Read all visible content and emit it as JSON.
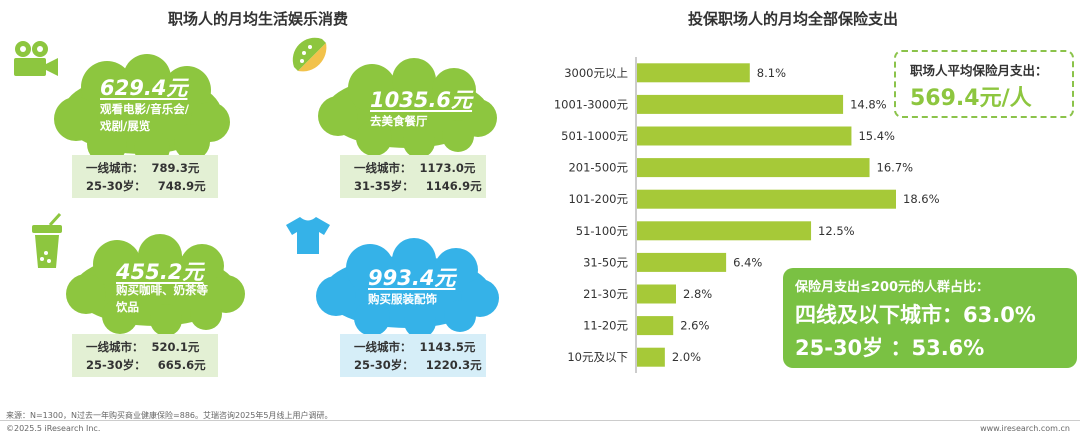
{
  "left_title": "职场人的月均生活娱乐消费",
  "right_title": "投保职场人的月均全部保险支出",
  "colors": {
    "green": "#8dc63f",
    "blue": "#35b2e8",
    "lightgreen": "#e3f0d4",
    "lightblue": "#d6eef8",
    "bar": "#a6c938"
  },
  "consumption": [
    {
      "amount": "629.4元",
      "desc": "观看电影/音乐会/\n戏剧/展览",
      "stat1": "一线城市：  789.3元",
      "stat2": "25-30岁：   748.9元",
      "icon": "movie-camera-icon"
    },
    {
      "amount": "1035.6元",
      "desc": "去美食餐厅",
      "stat1": "一线城市：  1173.0元",
      "stat2": "31-35岁：   1146.9元",
      "icon": "taco-icon"
    },
    {
      "amount": "455.2元",
      "desc": "购买咖啡、奶茶等\n饮品",
      "stat1": "一线城市：  520.1元",
      "stat2": "25-30岁：   665.6元",
      "icon": "drink-cup-icon"
    },
    {
      "amount": "993.4元",
      "desc": "购买服装配饰",
      "stat1": "一线城市：  1143.5元",
      "stat2": "25-30岁：   1220.3元",
      "icon": "tshirt-icon"
    }
  ],
  "chart_data": {
    "type": "bar",
    "orientation": "horizontal",
    "title": "投保职场人的月均全部保险支出",
    "categories": [
      "3000元以上",
      "1001-3000元",
      "501-1000元",
      "201-500元",
      "101-200元",
      "51-100元",
      "31-50元",
      "21-30元",
      "11-20元",
      "10元及以下"
    ],
    "values": [
      8.1,
      14.8,
      15.4,
      16.7,
      18.6,
      12.5,
      6.4,
      2.8,
      2.6,
      2.0
    ],
    "value_labels": [
      "8.1%",
      "14.8%",
      "15.4%",
      "16.7%",
      "18.6%",
      "12.5%",
      "6.4%",
      "2.8%",
      "2.6%",
      "2.0%"
    ],
    "xlim": [
      0,
      18.6
    ],
    "grid": false
  },
  "callout": {
    "label": "职场人平均保险月支出：",
    "value": "569.4元/人"
  },
  "highlight": {
    "heading": "保险月支出≤200元的人群占比：",
    "line1": "四线及以下城市：63.0%",
    "line2": "25-30岁 ：53.6%"
  },
  "footer": {
    "source": "来源：N=1300，N过去一年购买商业健康保险=886。艾瑞咨询2025年5月线上用户调研。",
    "copyright": "©2025.5 iResearch Inc.",
    "website": "www.iresearch.com.cn"
  }
}
